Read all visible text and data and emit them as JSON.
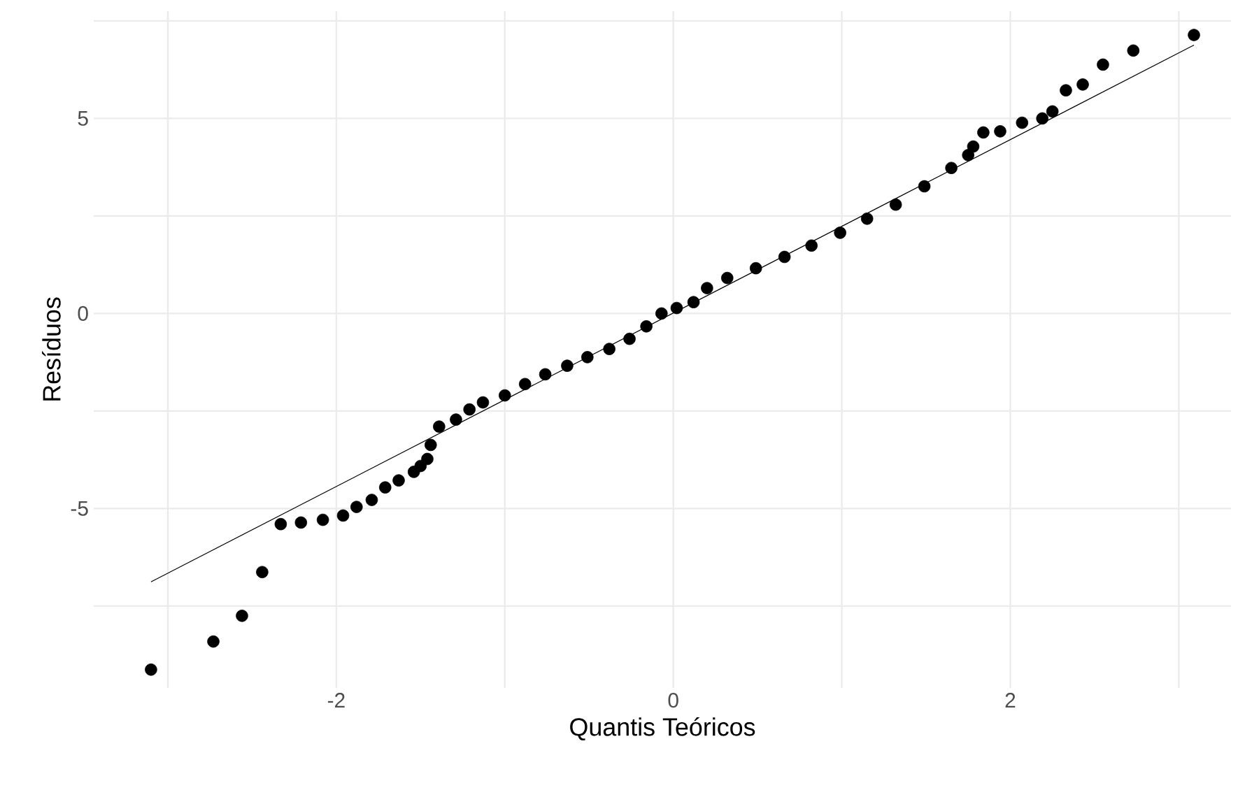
{
  "chart_data": {
    "type": "scatter",
    "xlabel": "Quantis Teóricos",
    "ylabel": "Resíduos",
    "xlim": [
      -3.44,
      3.31
    ],
    "ylim": [
      -9.6,
      7.75
    ],
    "xticks": [
      {
        "value": -3,
        "label": null
      },
      -2,
      {
        "value": -1,
        "label": null
      },
      0,
      {
        "value": 1,
        "label": null
      },
      2,
      {
        "value": 3,
        "label": null
      }
    ],
    "yticks": [
      {
        "value": -7.5,
        "label": null
      },
      -5,
      {
        "value": -2.5,
        "label": null
      },
      0,
      {
        "value": 2.5,
        "label": null
      },
      5,
      {
        "value": 7.5,
        "label": null
      }
    ],
    "grid": true,
    "series": [
      {
        "type": "scatter",
        "color": "#000000",
        "marker": "circle",
        "x": [
          -3.1,
          -2.73,
          -2.56,
          -2.44,
          -2.33,
          -2.21,
          -2.08,
          -1.96,
          -1.88,
          -1.79,
          -1.71,
          -1.63,
          -1.54,
          -1.5,
          -1.46,
          -1.44,
          -1.39,
          -1.29,
          -1.21,
          -1.13,
          -1.0,
          -0.88,
          -0.76,
          -0.63,
          -0.51,
          -0.38,
          -0.26,
          -0.16,
          -0.07,
          0.02,
          0.12,
          0.2,
          0.32,
          0.49,
          0.66,
          0.82,
          0.99,
          1.15,
          1.32,
          1.49,
          1.65,
          1.75,
          1.78,
          1.84,
          1.94,
          2.07,
          2.19,
          2.25,
          2.33,
          2.43,
          2.55,
          2.73,
          3.09
        ],
        "values": [
          -9.13,
          -8.41,
          -7.75,
          -6.63,
          -5.4,
          -5.36,
          -5.29,
          -5.18,
          -4.96,
          -4.78,
          -4.46,
          -4.28,
          -4.06,
          -3.91,
          -3.73,
          -3.37,
          -2.9,
          -2.72,
          -2.46,
          -2.28,
          -2.1,
          -1.81,
          -1.56,
          -1.34,
          -1.12,
          -0.91,
          -0.65,
          -0.33,
          0.0,
          0.14,
          0.29,
          0.65,
          0.91,
          1.16,
          1.45,
          1.74,
          2.07,
          2.43,
          2.79,
          3.26,
          3.73,
          4.06,
          4.28,
          4.64,
          4.67,
          4.89,
          5.0,
          5.18,
          5.72,
          5.87,
          6.38,
          6.74,
          7.14
        ]
      },
      {
        "type": "line",
        "color": "#000000",
        "marker": "none",
        "x": [
          -3.1,
          3.09
        ],
        "values": [
          -6.88,
          6.88
        ]
      }
    ]
  }
}
